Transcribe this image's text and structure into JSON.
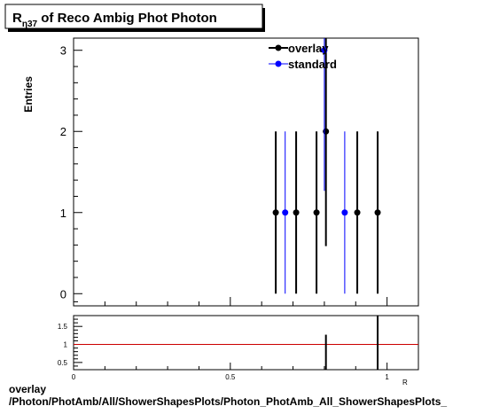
{
  "chart_data": [
    {
      "type": "scatter",
      "title_main": "R",
      "title_sub": "η37",
      "title_rest": " of Reco Ambig Phot Photon",
      "ylabel": "Entries",
      "xlabel": "",
      "xlim": [
        0,
        1.1
      ],
      "ylim": [
        -0.15,
        3.15
      ],
      "yticks": [
        0,
        1,
        2,
        3
      ],
      "ytick_labels": [
        "0",
        "1",
        "2",
        "3"
      ],
      "grid": false,
      "legend_position": "top-right",
      "series": [
        {
          "name": "overlay",
          "color": "#000000",
          "points": [
            {
              "x": 0.645,
              "y": 1,
              "err": 1
            },
            {
              "x": 0.71,
              "y": 1,
              "err": 1
            },
            {
              "x": 0.775,
              "y": 1,
              "err": 1
            },
            {
              "x": 0.805,
              "y": 2,
              "err": 1.414
            },
            {
              "x": 0.905,
              "y": 1,
              "err": 1
            },
            {
              "x": 0.97,
              "y": 1,
              "err": 1
            }
          ]
        },
        {
          "name": "standard",
          "color": "#0000ff",
          "points": [
            {
              "x": 0.675,
              "y": 1,
              "err": 1
            },
            {
              "x": 0.8,
              "y": 3,
              "err": 1.732
            },
            {
              "x": 0.865,
              "y": 1,
              "err": 1
            }
          ]
        }
      ]
    },
    {
      "type": "scatter",
      "xlim": [
        0,
        1.1
      ],
      "ylim": [
        0.3,
        1.8
      ],
      "yticks": [
        0.5,
        1,
        1.5
      ],
      "ytick_labels": [
        "0.5",
        "1",
        "1.5"
      ],
      "xticks": [
        0,
        0.5,
        1
      ],
      "xtick_labels": [
        "0",
        "0.5",
        "1"
      ],
      "xlabel_fragment": "R",
      "reference_line": {
        "y": 1,
        "color": "#cc0000"
      },
      "ratio_bars": [
        {
          "x": 0.805,
          "y_low": 0.3,
          "y_high": 1.27
        },
        {
          "x": 0.97,
          "y_low": 0.3,
          "y_high": 1.8
        }
      ]
    }
  ],
  "footer": {
    "line1": "overlay",
    "line2": "/Photon/PhotAmb/All/ShowerShapesPlots/Photon_PhotAmb_All_ShowerShapesPlots_"
  }
}
